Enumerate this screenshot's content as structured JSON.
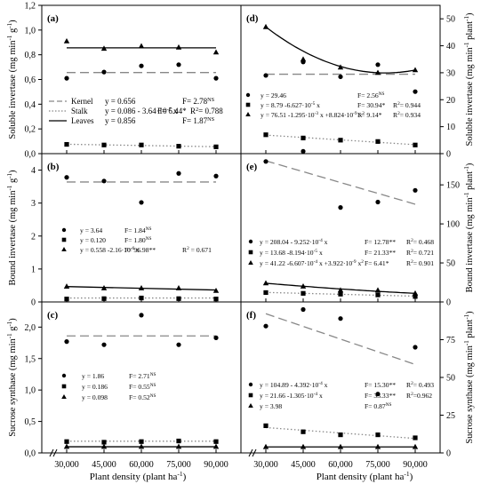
{
  "figure": {
    "x_axis_title": "Plant density (plant ha",
    "x_axis_title_sup": "-1",
    "x_axis_title_end": ")"
  },
  "chart_data": [
    {
      "id": "a",
      "panel_label": "(a)",
      "type": "scatter",
      "x": [
        "30,000",
        "45,000",
        "60,000",
        "75,000",
        "90,000"
      ],
      "ylabel": "Soluble invertase (mg min",
      "ylabel_sup": "-1",
      "ylabel_tail": " g",
      "ylabel_sup2": "-1",
      "ylabel_end": ")",
      "ylim": [
        0,
        1.2
      ],
      "yticks": [
        "0,0",
        "0,2",
        "0,4",
        "0,6",
        "0,8",
        "1,0",
        "1,2"
      ],
      "series": [
        {
          "name": "Kernel",
          "marker": "circle",
          "values": [
            0.61,
            0.66,
            0.71,
            0.72,
            0.61
          ],
          "fit": "const",
          "fit_const": 0.656,
          "line": "dashed"
        },
        {
          "name": "Stalk",
          "marker": "square",
          "values": [
            0.075,
            0.07,
            0.07,
            0.06,
            0.055
          ],
          "fit": "linear",
          "line": "dotted"
        },
        {
          "name": "Leaves",
          "marker": "triangle",
          "values": [
            0.91,
            0.85,
            0.87,
            0.86,
            0.82
          ],
          "fit": "const",
          "fit_const": 0.856,
          "line": "solid"
        }
      ],
      "legend": [
        {
          "name": "Kernel",
          "eq": "y = 0.656",
          "stat": "F= 2.78",
          "sup": "NS",
          "r2": ""
        },
        {
          "name": "Stalk",
          "eq": "y = 0.086 - 3.64·10",
          "eq_sup": "-7",
          "eq_end": " x",
          "stat": "F= 6.44*",
          "sup": "",
          "r2": "R",
          "r2_sup": "2",
          "r2_end": "= 0.788"
        },
        {
          "name": "Leaves",
          "eq": "y = 0.856",
          "stat": "F= 1.87",
          "sup": "NS",
          "r2": ""
        }
      ]
    },
    {
      "id": "b",
      "panel_label": "(b)",
      "type": "scatter",
      "x": [
        "30,000",
        "45,000",
        "60,000",
        "75,000",
        "90,000"
      ],
      "ylabel": "Bound invertase (mg min",
      "ylabel_sup": "-1",
      "ylabel_tail": " g",
      "ylabel_sup2": "-1",
      "ylabel_end": ")",
      "ylim": [
        0,
        4.5
      ],
      "yticks": [
        "0",
        "1",
        "2",
        "3",
        "4"
      ],
      "series": [
        {
          "marker": "circle",
          "values": [
            3.78,
            3.67,
            3.02,
            3.9,
            3.82
          ],
          "fit": "const",
          "fit_const": 3.64,
          "line": "dashed"
        },
        {
          "marker": "square",
          "values": [
            0.09,
            0.1,
            0.12,
            0.1,
            0.09
          ],
          "fit": "const",
          "fit_const": 0.12,
          "line": "dotted"
        },
        {
          "marker": "triangle",
          "values": [
            0.47,
            0.42,
            0.42,
            0.42,
            0.34
          ],
          "fit": "linear",
          "line": "solid"
        }
      ],
      "legend": [
        {
          "eq": "y = 3.64",
          "stat": "F= 1.84",
          "sup": "NS",
          "r2": ""
        },
        {
          "eq": "y = 0.120",
          "stat": "F= 1.80",
          "sup": "NS",
          "r2": ""
        },
        {
          "eq": "y = 0.558 -2.16·10",
          "eq_sup": "-6",
          "eq_end": " x",
          "stat": "F= 96.98**",
          "sup": "",
          "r2": "R",
          "r2_sup": "2",
          "r2_end": " = 0.671"
        }
      ]
    },
    {
      "id": "c",
      "panel_label": "(c)",
      "type": "scatter",
      "x": [
        "30,000",
        "45,000",
        "60,000",
        "75,000",
        "90,000"
      ],
      "ylabel": "Sucrose synthase (mg min",
      "ylabel_sup": "-1",
      "ylabel_tail": " g",
      "ylabel_sup2": "-1",
      "ylabel_end": ")",
      "ylim": [
        0,
        2.4
      ],
      "yticks": [
        "0,0",
        "0,5",
        "1,0",
        "1,5",
        "2,0"
      ],
      "series": [
        {
          "marker": "circle",
          "values": [
            1.77,
            1.72,
            2.19,
            1.72,
            1.83
          ],
          "fit": "const",
          "fit_const": 1.86,
          "line": "dashed"
        },
        {
          "marker": "square",
          "values": [
            0.18,
            0.17,
            0.18,
            0.19,
            0.18
          ],
          "fit": "const",
          "fit_const": 0.186,
          "line": "dotted"
        },
        {
          "marker": "triangle",
          "values": [
            0.1,
            0.1,
            0.1,
            0.1,
            0.1
          ],
          "fit": "const",
          "fit_const": 0.098,
          "line": "solid"
        }
      ],
      "legend": [
        {
          "eq": "y = 1.86",
          "stat": "F= 2.71",
          "sup": "NS",
          "r2": ""
        },
        {
          "eq": "y = 0.186",
          "stat": "F= 0.55",
          "sup": "NS",
          "r2": ""
        },
        {
          "eq": "y = 0.098",
          "stat": "F= 0.52",
          "sup": "NS",
          "r2": ""
        }
      ]
    },
    {
      "id": "d",
      "panel_label": "(d)",
      "type": "scatter",
      "x": [
        "30,000",
        "45,000",
        "60,000",
        "75,000",
        "90,000"
      ],
      "ylabel": "Soluble invertase (mg min",
      "ylabel_sup": "-1",
      "ylabel_tail": " plant",
      "ylabel_sup2": "-1",
      "ylabel_end": ")",
      "ylim": [
        0,
        55
      ],
      "yticks": [
        "0",
        "10",
        "20",
        "30",
        "40",
        "50"
      ],
      "series": [
        {
          "marker": "circle",
          "values": [
            29,
            34,
            28.5,
            33,
            23
          ],
          "fit": "const",
          "fit_const": 29.46,
          "line": "dashed"
        },
        {
          "marker": "square",
          "values": [
            7,
            5.8,
            5,
            4.5,
            3.2
          ],
          "fit": "linear",
          "line": "dotted"
        },
        {
          "marker": "triangle",
          "values": [
            47,
            35,
            32,
            30,
            31
          ],
          "fit": "quadratic",
          "line": "solid"
        }
      ],
      "legend": [
        {
          "eq": "y = 29.46",
          "stat": "F= 2.56",
          "sup": "NS",
          "r2": ""
        },
        {
          "eq": "y = 8.79 -6.627·10",
          "eq_sup": "-5",
          "eq_end": " x",
          "stat": "F= 30.94*",
          "sup": "",
          "r2": "R",
          "r2_sup": "2",
          "r2_end": "= 0.944"
        },
        {
          "eq": "y = 76.51 -1.295·10",
          "eq_sup": "-3",
          "eq_mid": " x +8.824·10",
          "eq_sup2": "-9",
          "eq_end": " x",
          "eq_sup3": "2",
          "stat": "F= 9.14*",
          "sup": "",
          "r2": "R",
          "r2_sup": "2",
          "r2_end": "= 0.934"
        }
      ]
    },
    {
      "id": "e",
      "panel_label": "(e)",
      "type": "scatter",
      "x": [
        "30,000",
        "45,000",
        "60,000",
        "75,000",
        "90,000"
      ],
      "ylabel": "Bound invertase (mg min",
      "ylabel_sup": "-1",
      "ylabel_tail": " plant",
      "ylabel_sup2": "-1",
      "ylabel_end": ")",
      "ylim": [
        0,
        190
      ],
      "yticks": [
        "0",
        "50",
        "100",
        "150"
      ],
      "series": [
        {
          "marker": "circle",
          "values": [
            180,
            193,
            121,
            128,
            143
          ],
          "fit": "linear",
          "line": "dashed"
        },
        {
          "marker": "square",
          "values": [
            12,
            11,
            10,
            9,
            7
          ],
          "fit": "linear",
          "line": "dotted"
        },
        {
          "marker": "triangle",
          "values": [
            24,
            20,
            15,
            15,
            11
          ],
          "fit": "quadratic",
          "line": "solid"
        }
      ],
      "legend": [
        {
          "eq": "y = 208.04 - 9.252·10",
          "eq_sup": "-4",
          "eq_end": " x",
          "stat": "F= 12.78**",
          "sup": "",
          "r2": "R",
          "r2_sup": "2",
          "r2_end": "= 0.468"
        },
        {
          "eq": "y = 13.68 -8.194·10",
          "eq_sup": "-5",
          "eq_end": " x",
          "stat": "F= 21.33**",
          "sup": "",
          "r2": "R",
          "r2_sup": "2",
          "r2_end": "= 0.721"
        },
        {
          "eq": "y = 41.22 -6.607·10",
          "eq_sup": "-4",
          "eq_mid": " x +3.922·10",
          "eq_sup2": "-9",
          "eq_end": " x",
          "eq_sup3": "2",
          "stat": "F= 6.41*",
          "sup": "",
          "r2": "R",
          "r2_sup": "2",
          "r2_end": "= 0.901"
        }
      ]
    },
    {
      "id": "f",
      "panel_label": "(f)",
      "type": "scatter",
      "x": [
        "30,000",
        "45,000",
        "60,000",
        "75,000",
        "90,000"
      ],
      "ylabel": "Sucrose synthase (mg min",
      "ylabel_sup": "-1",
      "ylabel_tail": " plant",
      "ylabel_sup2": "-1",
      "ylabel_end": ")",
      "ylim": [
        0,
        100
      ],
      "yticks": [
        "0",
        "25",
        "50",
        "75"
      ],
      "series": [
        {
          "marker": "circle",
          "values": [
            84,
            95,
            89,
            39,
            70
          ],
          "fit": "linear",
          "line": "dashed"
        },
        {
          "marker": "square",
          "values": [
            18,
            14,
            12,
            12,
            10
          ],
          "fit": "linear",
          "line": "dotted"
        },
        {
          "marker": "triangle",
          "values": [
            4,
            4,
            4,
            4,
            4
          ],
          "fit": "const",
          "fit_const": 3.98,
          "line": "solid"
        }
      ],
      "legend": [
        {
          "eq": "y = 104.89 - 4.392·10",
          "eq_sup": "-4",
          "eq_end": " x",
          "stat": "F= 15.30**",
          "sup": "",
          "r2": "R",
          "r2_sup": "2",
          "r2_end": "= 0.493"
        },
        {
          "eq": "y = 21.66 -1.305·10",
          "eq_sup": "-4",
          "eq_end": " x",
          "stat": "F= 33.33**",
          "sup": "",
          "r2": "R",
          "r2_sup": "2",
          "r2_end": "=0.962"
        },
        {
          "eq": "y = 3.98",
          "stat": "F= 0.87",
          "sup": "NS",
          "r2": ""
        }
      ]
    }
  ]
}
